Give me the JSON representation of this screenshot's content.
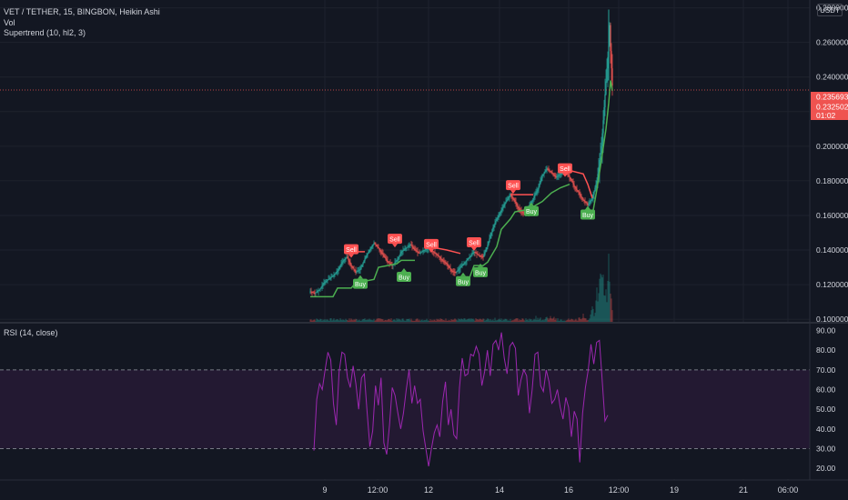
{
  "legend": {
    "symbol": "VET / TETHER, 15, BINGBON, Heikin Ashi",
    "volume": "Vol",
    "supertrend": "Supertrend (10, hl2, 3)",
    "rsi": "RSI (14, close)"
  },
  "currency": "USDT",
  "price_labels": {
    "current": "0.235693",
    "line": "0.232502",
    "countdown": "01:02"
  },
  "colors": {
    "up": "#26a69a",
    "down": "#ef5350",
    "rsi": "#9c27b0",
    "background": "#131722",
    "grid": "#1e222d",
    "axis_text": "#d1d4dc"
  },
  "chart_data": [
    {
      "type": "candlestick",
      "panel": "price",
      "y_ticks": [
        "0.280000",
        "0.260000",
        "0.240000",
        "0.220000",
        "0.200000",
        "0.180000",
        "0.160000",
        "0.140000",
        "0.120000",
        "0.100000"
      ],
      "ylim": [
        0.0985,
        0.2845
      ],
      "x_ticks": [
        "9",
        "12:00",
        "12",
        "14",
        "16",
        "12:00",
        "19",
        "21",
        "06:00"
      ],
      "price_path": [
        [
          0,
          0.116
        ],
        [
          5,
          0.115
        ],
        [
          10,
          0.117
        ],
        [
          15,
          0.121
        ],
        [
          20,
          0.123
        ],
        [
          25,
          0.125
        ],
        [
          30,
          0.128
        ],
        [
          35,
          0.133
        ],
        [
          40,
          0.136
        ],
        [
          45,
          0.131
        ],
        [
          50,
          0.127
        ],
        [
          55,
          0.129
        ],
        [
          60,
          0.135
        ],
        [
          65,
          0.14
        ],
        [
          70,
          0.144
        ],
        [
          75,
          0.141
        ],
        [
          80,
          0.137
        ],
        [
          85,
          0.133
        ],
        [
          90,
          0.131
        ],
        [
          95,
          0.134
        ],
        [
          100,
          0.139
        ],
        [
          105,
          0.141
        ],
        [
          110,
          0.143
        ],
        [
          115,
          0.14
        ],
        [
          120,
          0.138
        ],
        [
          125,
          0.14
        ],
        [
          130,
          0.141
        ],
        [
          135,
          0.139
        ],
        [
          140,
          0.137
        ],
        [
          145,
          0.134
        ],
        [
          150,
          0.132
        ],
        [
          155,
          0.128
        ],
        [
          160,
          0.127
        ],
        [
          165,
          0.13
        ],
        [
          170,
          0.133
        ],
        [
          175,
          0.136
        ],
        [
          180,
          0.139
        ],
        [
          185,
          0.137
        ],
        [
          190,
          0.136
        ],
        [
          195,
          0.143
        ],
        [
          200,
          0.152
        ],
        [
          205,
          0.158
        ],
        [
          210,
          0.163
        ],
        [
          215,
          0.168
        ],
        [
          220,
          0.172
        ],
        [
          225,
          0.168
        ],
        [
          230,
          0.163
        ],
        [
          235,
          0.161
        ],
        [
          240,
          0.165
        ],
        [
          245,
          0.17
        ],
        [
          250,
          0.175
        ],
        [
          255,
          0.183
        ],
        [
          260,
          0.187
        ],
        [
          265,
          0.185
        ],
        [
          270,
          0.182
        ],
        [
          275,
          0.184
        ],
        [
          280,
          0.186
        ],
        [
          285,
          0.182
        ],
        [
          290,
          0.177
        ],
        [
          295,
          0.173
        ],
        [
          300,
          0.169
        ],
        [
          305,
          0.166
        ],
        [
          310,
          0.17
        ],
        [
          315,
          0.18
        ],
        [
          320,
          0.2
        ],
        [
          322,
          0.215
        ],
        [
          324,
          0.23
        ],
        [
          326,
          0.245
        ],
        [
          328,
          0.258
        ],
        [
          329,
          0.27
        ],
        [
          330,
          0.255
        ],
        [
          331,
          0.245
        ],
        [
          332,
          0.235
        ]
      ],
      "supertrend": {
        "up_segments": [
          [
            [
              0,
              0.113
            ],
            [
              25,
              0.113
            ],
            [
              30,
              0.118
            ],
            [
              45,
              0.118
            ],
            [
              50,
              0.121
            ],
            [
              70,
              0.123
            ],
            [
              75,
              0.13
            ],
            [
              95,
              0.132
            ],
            [
              100,
              0.134
            ],
            [
              115,
              0.134
            ]
          ],
          [
            [
              160,
              0.122
            ],
            [
              175,
              0.124
            ],
            [
              180,
              0.131
            ],
            [
              190,
              0.131
            ],
            [
              195,
              0.133
            ],
            [
              205,
              0.142
            ],
            [
              210,
              0.152
            ],
            [
              220,
              0.158
            ],
            [
              225,
              0.162
            ],
            [
              235,
              0.163
            ],
            [
              240,
              0.16
            ],
            [
              245,
              0.165
            ],
            [
              255,
              0.168
            ],
            [
              265,
              0.173
            ],
            [
              275,
              0.176
            ],
            [
              285,
              0.178
            ]
          ],
          [
            [
              310,
              0.16
            ],
            [
              315,
              0.175
            ],
            [
              320,
              0.192
            ],
            [
              325,
              0.21
            ],
            [
              328,
              0.225
            ],
            [
              330,
              0.238
            ],
            [
              332,
              0.232
            ]
          ]
        ],
        "down_segments": [
          [
            [
              45,
              0.139
            ],
            [
              60,
              0.139
            ]
          ],
          [
            [
              90,
              0.145
            ],
            [
              100,
              0.145
            ]
          ],
          [
            [
              130,
              0.142
            ],
            [
              150,
              0.14
            ],
            [
              165,
              0.138
            ]
          ],
          [
            [
              220,
              0.172
            ],
            [
              245,
              0.172
            ]
          ],
          [
            [
              285,
              0.186
            ],
            [
              300,
              0.184
            ],
            [
              305,
              0.178
            ],
            [
              310,
              0.17
            ]
          ]
        ]
      },
      "signals": [
        {
          "label": "Sell",
          "x": 45,
          "price": 0.1405
        },
        {
          "label": "Buy",
          "x": 55,
          "price": 0.1205
        },
        {
          "label": "Sell",
          "x": 93,
          "price": 0.1465
        },
        {
          "label": "Buy",
          "x": 103,
          "price": 0.1245
        },
        {
          "label": "Sell",
          "x": 133,
          "price": 0.1435
        },
        {
          "label": "Buy",
          "x": 168,
          "price": 0.122
        },
        {
          "label": "Sell",
          "x": 180,
          "price": 0.1445
        },
        {
          "label": "Buy",
          "x": 187,
          "price": 0.1272
        },
        {
          "label": "Sell",
          "x": 223,
          "price": 0.1775
        },
        {
          "label": "Buy",
          "x": 243,
          "price": 0.1625
        },
        {
          "label": "Sell",
          "x": 280,
          "price": 0.1872
        },
        {
          "label": "Buy",
          "x": 305,
          "price": 0.1605
        }
      ]
    },
    {
      "type": "bar",
      "panel": "volume",
      "series": "Vol",
      "spikes": [
        [
          300,
          0.12
        ],
        [
          310,
          0.3
        ],
        [
          315,
          0.55
        ],
        [
          318,
          0.8
        ],
        [
          320,
          1.0
        ],
        [
          322,
          0.85
        ],
        [
          325,
          0.6
        ],
        [
          328,
          0.9
        ],
        [
          330,
          0.5
        ]
      ]
    },
    {
      "type": "line",
      "panel": "rsi",
      "series": "RSI (14, close)",
      "y_ticks": [
        "90.00",
        "80.00",
        "70.00",
        "60.00",
        "50.00",
        "40.00",
        "30.00",
        "20.00"
      ],
      "ylim": [
        14.5,
        93.5
      ],
      "band": [
        30,
        70
      ],
      "values": [
        29,
        55,
        63,
        60,
        70,
        79,
        75,
        53,
        42,
        69,
        79,
        78,
        66,
        61,
        72,
        63,
        50,
        66,
        68,
        49,
        31,
        39,
        62,
        52,
        66,
        33,
        27,
        42,
        61,
        57,
        48,
        40,
        48,
        60,
        70,
        53,
        62,
        53,
        55,
        39,
        30,
        21,
        30,
        38,
        42,
        36,
        54,
        64,
        42,
        50,
        37,
        35,
        61,
        76,
        67,
        68,
        78,
        77,
        82,
        78,
        62,
        69,
        80,
        67,
        83,
        85,
        80,
        89,
        76,
        68,
        82,
        84,
        81,
        57,
        65,
        70,
        67,
        48,
        60,
        78,
        79,
        62,
        59,
        70,
        64,
        53,
        55,
        60,
        51,
        45,
        56,
        51,
        36,
        49,
        45,
        23,
        48,
        61,
        70,
        83,
        73,
        84,
        85,
        65,
        44,
        47
      ]
    }
  ]
}
